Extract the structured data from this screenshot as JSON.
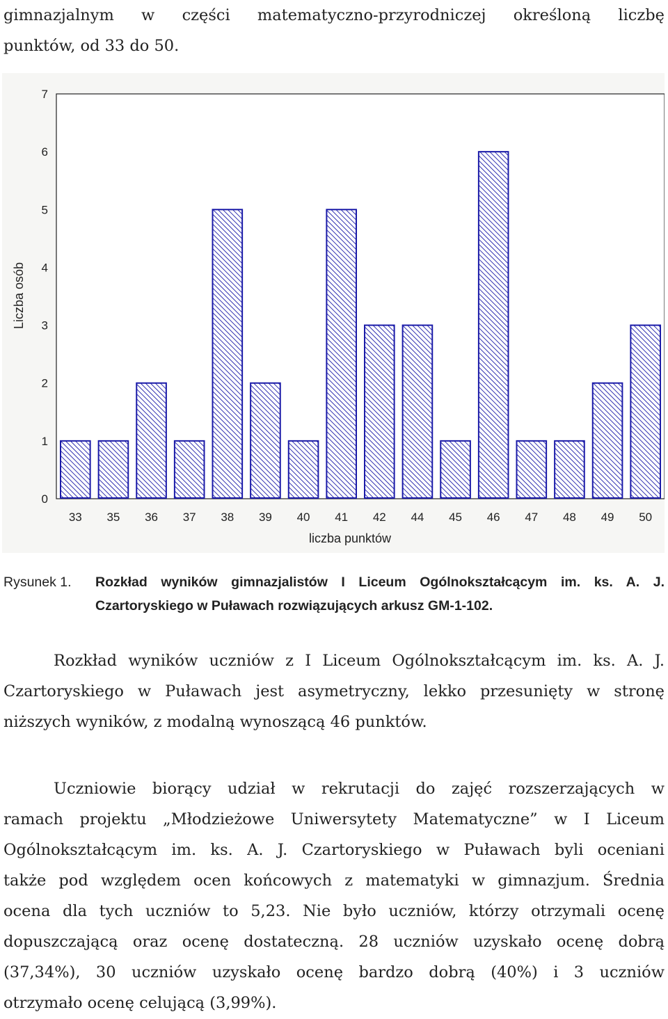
{
  "intro": {
    "line1": "gimnazjalnym w części matematyczno-przyrodniczej określoną liczbę",
    "line2": "punktów, od 33 do 50."
  },
  "chart_data": {
    "type": "bar",
    "xlabel": "liczba punktów",
    "ylabel": "Liczba osób",
    "ylim": [
      0,
      7
    ],
    "yticks": [
      "0",
      "1",
      "2",
      "3",
      "4",
      "5",
      "6",
      "7"
    ],
    "grid": false,
    "pattern": "diagonal-hatch",
    "colors": {
      "bar_stroke": "#1a1aa8",
      "hatch": "#1a1aa8",
      "plot_bg": "#ffffff",
      "outer_bg": "#f6f6f4"
    },
    "categories": [
      "33",
      "35",
      "36",
      "37",
      "38",
      "39",
      "40",
      "41",
      "42",
      "44",
      "45",
      "46",
      "47",
      "48",
      "49",
      "50"
    ],
    "values": [
      1,
      1,
      2,
      1,
      5,
      2,
      1,
      5,
      3,
      3,
      1,
      6,
      1,
      1,
      2,
      3
    ]
  },
  "caption": {
    "label": "Rysunek 1.",
    "line1": "Rozkład wyników gimnazjalistów I Liceum Ogólnokształcącym im. ks. A. J.",
    "line2": "Czartoryskiego w Puławach rozwiązujących arkusz GM-1-102."
  },
  "paragraph1": {
    "line1": "Rozkład wyników uczniów z I Liceum Ogólnokształcącym im. ks. A. J.",
    "line2": "Czartoryskiego w Puławach jest asymetryczny, lekko przesunięty w stronę",
    "line3": "niższych wyników, z modalną wynoszącą 46 punktów."
  },
  "paragraph2": {
    "line1": "Uczniowie biorący udział w rekrutacji do zajęć rozszerzających w",
    "line2": "ramach projektu „Młodzieżowe Uniwersytety Matematyczne” w I Liceum",
    "line3": "Ogólnokształcącym im. ks. A. J. Czartoryskiego w Puławach byli oceniani",
    "line4": "także pod względem ocen końcowych z matematyki w gimnazjum. Średnia",
    "line5": "ocena dla tych uczniów to 5,23. Nie było uczniów, którzy otrzymali ocenę",
    "line6": "dopuszczającą oraz ocenę dostateczną. 28 uczniów uzyskało ocenę dobrą",
    "line7": "(37,34%), 30 uczniów uzyskało ocenę bardzo dobrą (40%) i 3 uczniów",
    "line8": "otrzymało ocenę celującą (3,99%)."
  }
}
